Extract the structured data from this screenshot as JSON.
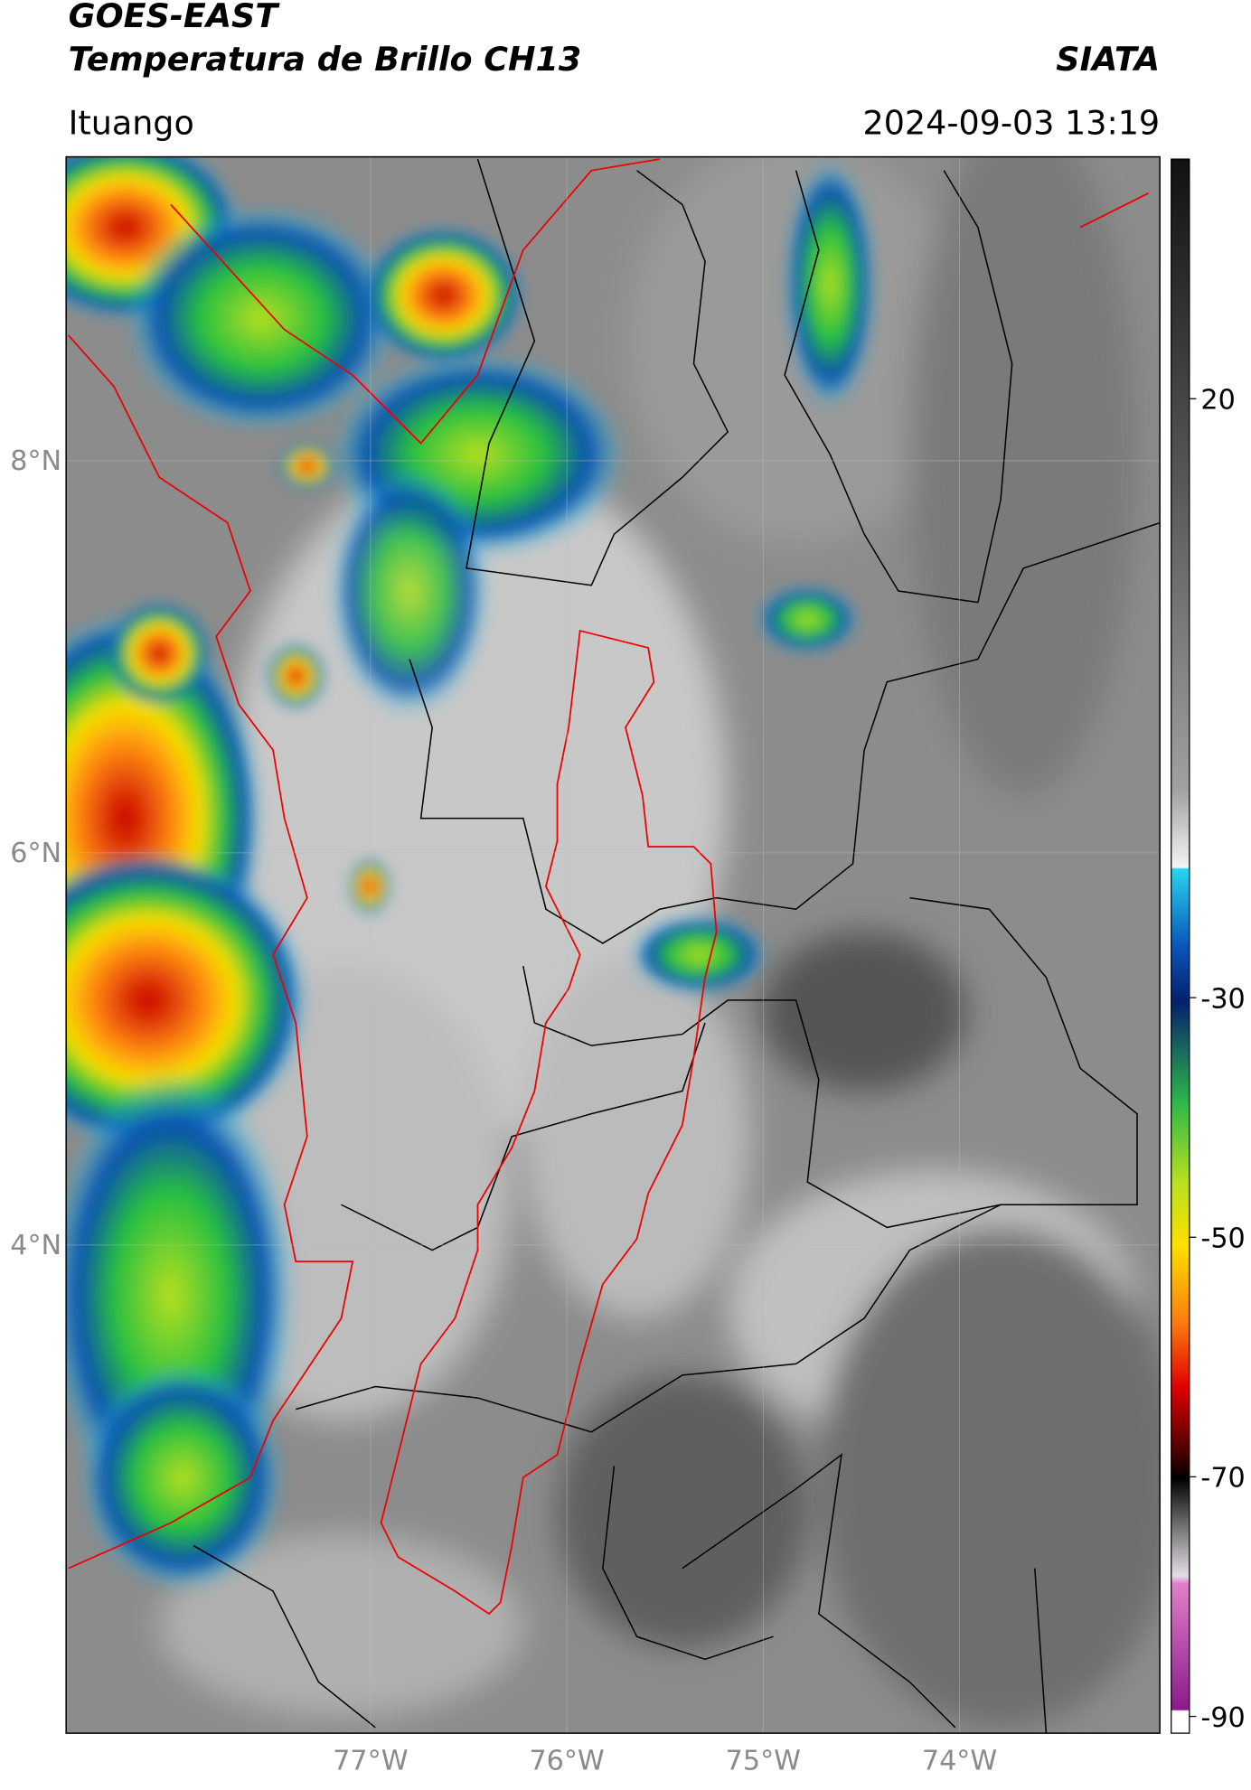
{
  "header": {
    "title": "GOES-EAST",
    "subtitle": "Temperatura de Brillo CH13",
    "source": "SIATA",
    "location": "Ituango",
    "timestamp": "2024-09-03 13:19"
  },
  "map": {
    "lonlim": [
      -78.55,
      -72.98
    ],
    "latlim": [
      1.51,
      9.55
    ],
    "lat_ticks": [
      {
        "value": 8,
        "label": "8°N"
      },
      {
        "value": 6,
        "label": "6°N"
      },
      {
        "value": 4,
        "label": "4°N"
      }
    ],
    "lon_ticks": [
      {
        "value": -77,
        "label": "77°W"
      },
      {
        "value": -76,
        "label": "76°W"
      },
      {
        "value": -75,
        "label": "75°W"
      },
      {
        "value": -74,
        "label": "74°W"
      }
    ]
  },
  "colorbar": {
    "lim": [
      -91.4,
      40
    ],
    "ticks": [
      20,
      -30,
      -50,
      -70,
      -90
    ]
  }
}
